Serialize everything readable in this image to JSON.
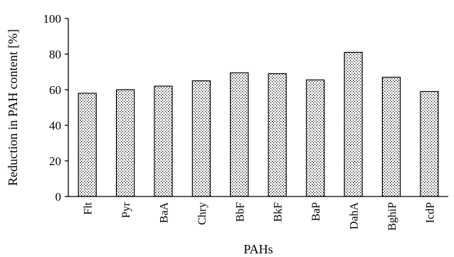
{
  "chart_data": {
    "type": "bar",
    "title": "",
    "xlabel": "PAHs",
    "ylabel": "Reduction in PAH content [%]",
    "ylim": [
      0,
      100
    ],
    "yticks": [
      0,
      20,
      40,
      60,
      80,
      100
    ],
    "grid": false,
    "legend": "none",
    "bar_fill": "dotted pattern",
    "colors": {
      "bar_edge": "#000000",
      "dot": "#000000",
      "background": "#ffffff"
    },
    "categories": [
      "Flt",
      "Pyr",
      "BaA",
      "Chry",
      "BbF",
      "BkF",
      "BaP",
      "DahA",
      "BghiP",
      "IcdP"
    ],
    "values": [
      58,
      60,
      62,
      65,
      69.5,
      69,
      65.5,
      81,
      67,
      59
    ]
  }
}
